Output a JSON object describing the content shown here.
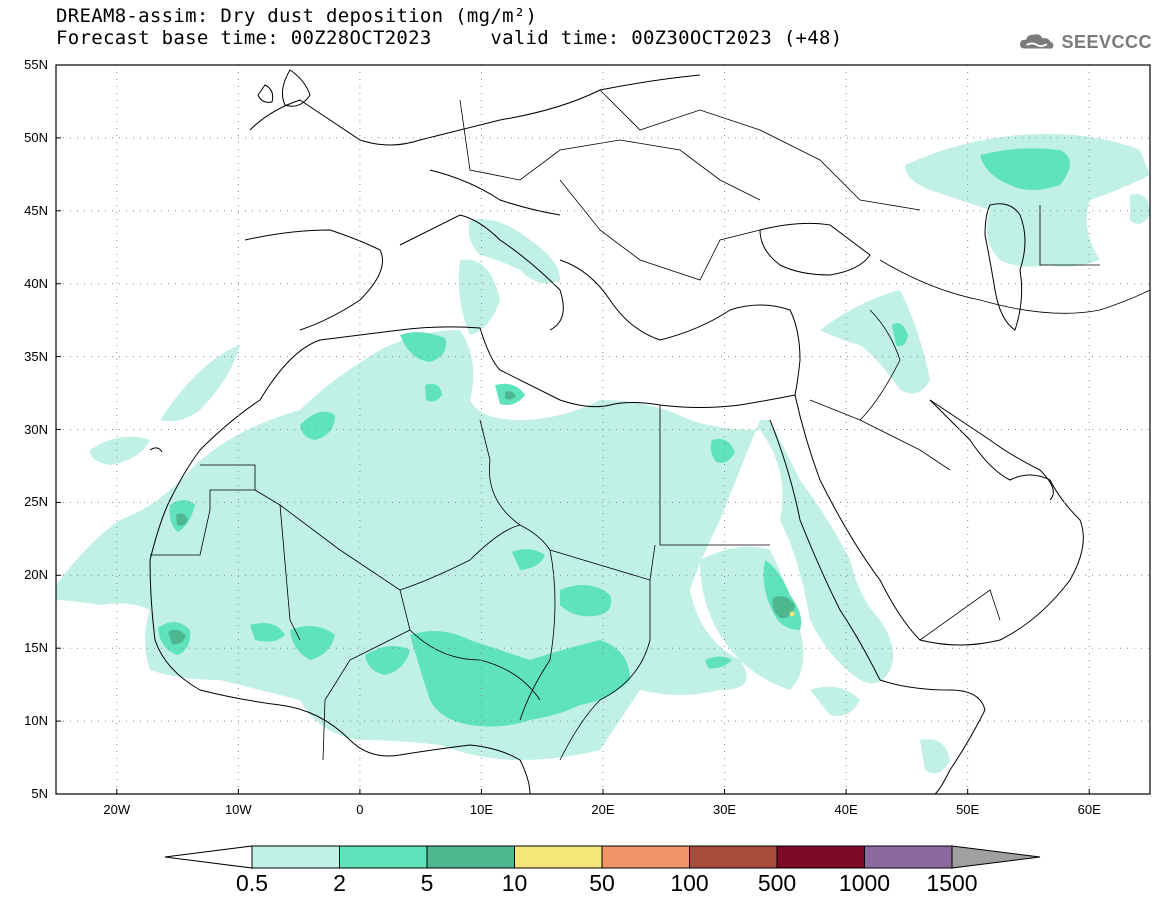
{
  "header": {
    "title_line1": "DREAM8-assim: Dry dust deposition (mg/m²)",
    "title_line2": "Forecast base time: 00Z28OCT2023     valid time: 00Z30OCT2023 (+48)"
  },
  "logo": {
    "text": "SEEVCCC",
    "icon": "cloud-logo-icon"
  },
  "map": {
    "lat_labels": [
      "55N",
      "50N",
      "45N",
      "40N",
      "35N",
      "30N",
      "25N",
      "20N",
      "15N",
      "10N",
      "5N"
    ],
    "lon_labels": [
      "20W",
      "10W",
      "0",
      "10E",
      "20E",
      "30E",
      "40E",
      "50E",
      "60E"
    ],
    "lat_range": [
      5,
      55
    ],
    "lon_range": [
      -25,
      65
    ],
    "grid": true
  },
  "legend": {
    "labels": [
      "0.5",
      "2",
      "5",
      "10",
      "50",
      "100",
      "500",
      "1000",
      "1500"
    ],
    "colors": [
      "#c0f0e6",
      "#5fe3bc",
      "#4db890",
      "#f5e67a",
      "#f0946a",
      "#a84a3c",
      "#7a0a28",
      "#8c6aa0",
      "#a0a0a0"
    ]
  }
}
